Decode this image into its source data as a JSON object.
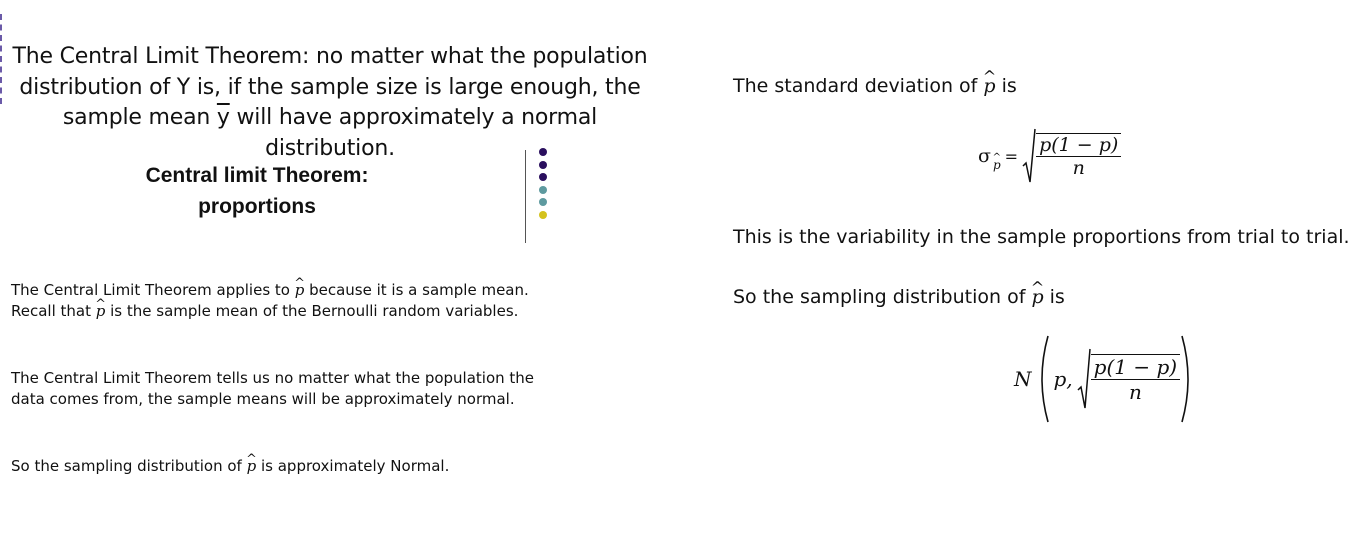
{
  "left_slide": {
    "theorem": {
      "line1": "The Central Limit Theorem:  no matter what the population",
      "line2": "distribution of Y is, if the sample size is large enough, the",
      "line3_prefix": "sample mean ",
      "ybar": "y",
      "line3_suffix": " will have approximately a normal distribution."
    },
    "title_line1": "Central limit Theorem:",
    "title_line2": "proportions",
    "decor_dots": [
      "#2a0f5e",
      "#2a0f5e",
      "#2a0f5e",
      "#5e9a9f",
      "#5e9a9f",
      "#d4c21d"
    ],
    "paragraph1": {
      "line1_prefix": "The Central Limit Theorem applies to ",
      "line1_suffix": " because it is a sample mean.",
      "line2_prefix": "Recall that ",
      "line2_suffix": " is the sample mean of the Bernoulli random variables."
    },
    "paragraph2": {
      "line1": "The Central Limit Theorem tells us no matter what the population the",
      "line2": "data comes from, the sample means will be approximately normal."
    },
    "paragraph3": {
      "prefix": "So the sampling distribution of ",
      "suffix": " is approximately Normal."
    },
    "phat": "p"
  },
  "right_slide": {
    "sd_prefix": "The standard deviation of ",
    "sd_suffix": " is",
    "formula1": {
      "sigma": "σ",
      "subscript": "p",
      "equals": "=",
      "numerator": "p(1 − p)",
      "denominator": "n"
    },
    "variability": "This is the variability in the sample proportions from trial to trial.",
    "sampling_prefix": "So the sampling distribution of ",
    "sampling_suffix": " is",
    "formula2": {
      "N": "N",
      "p_arg": "p,",
      "numerator": "p(1 − p)",
      "denominator": "n"
    },
    "phat": "p"
  }
}
